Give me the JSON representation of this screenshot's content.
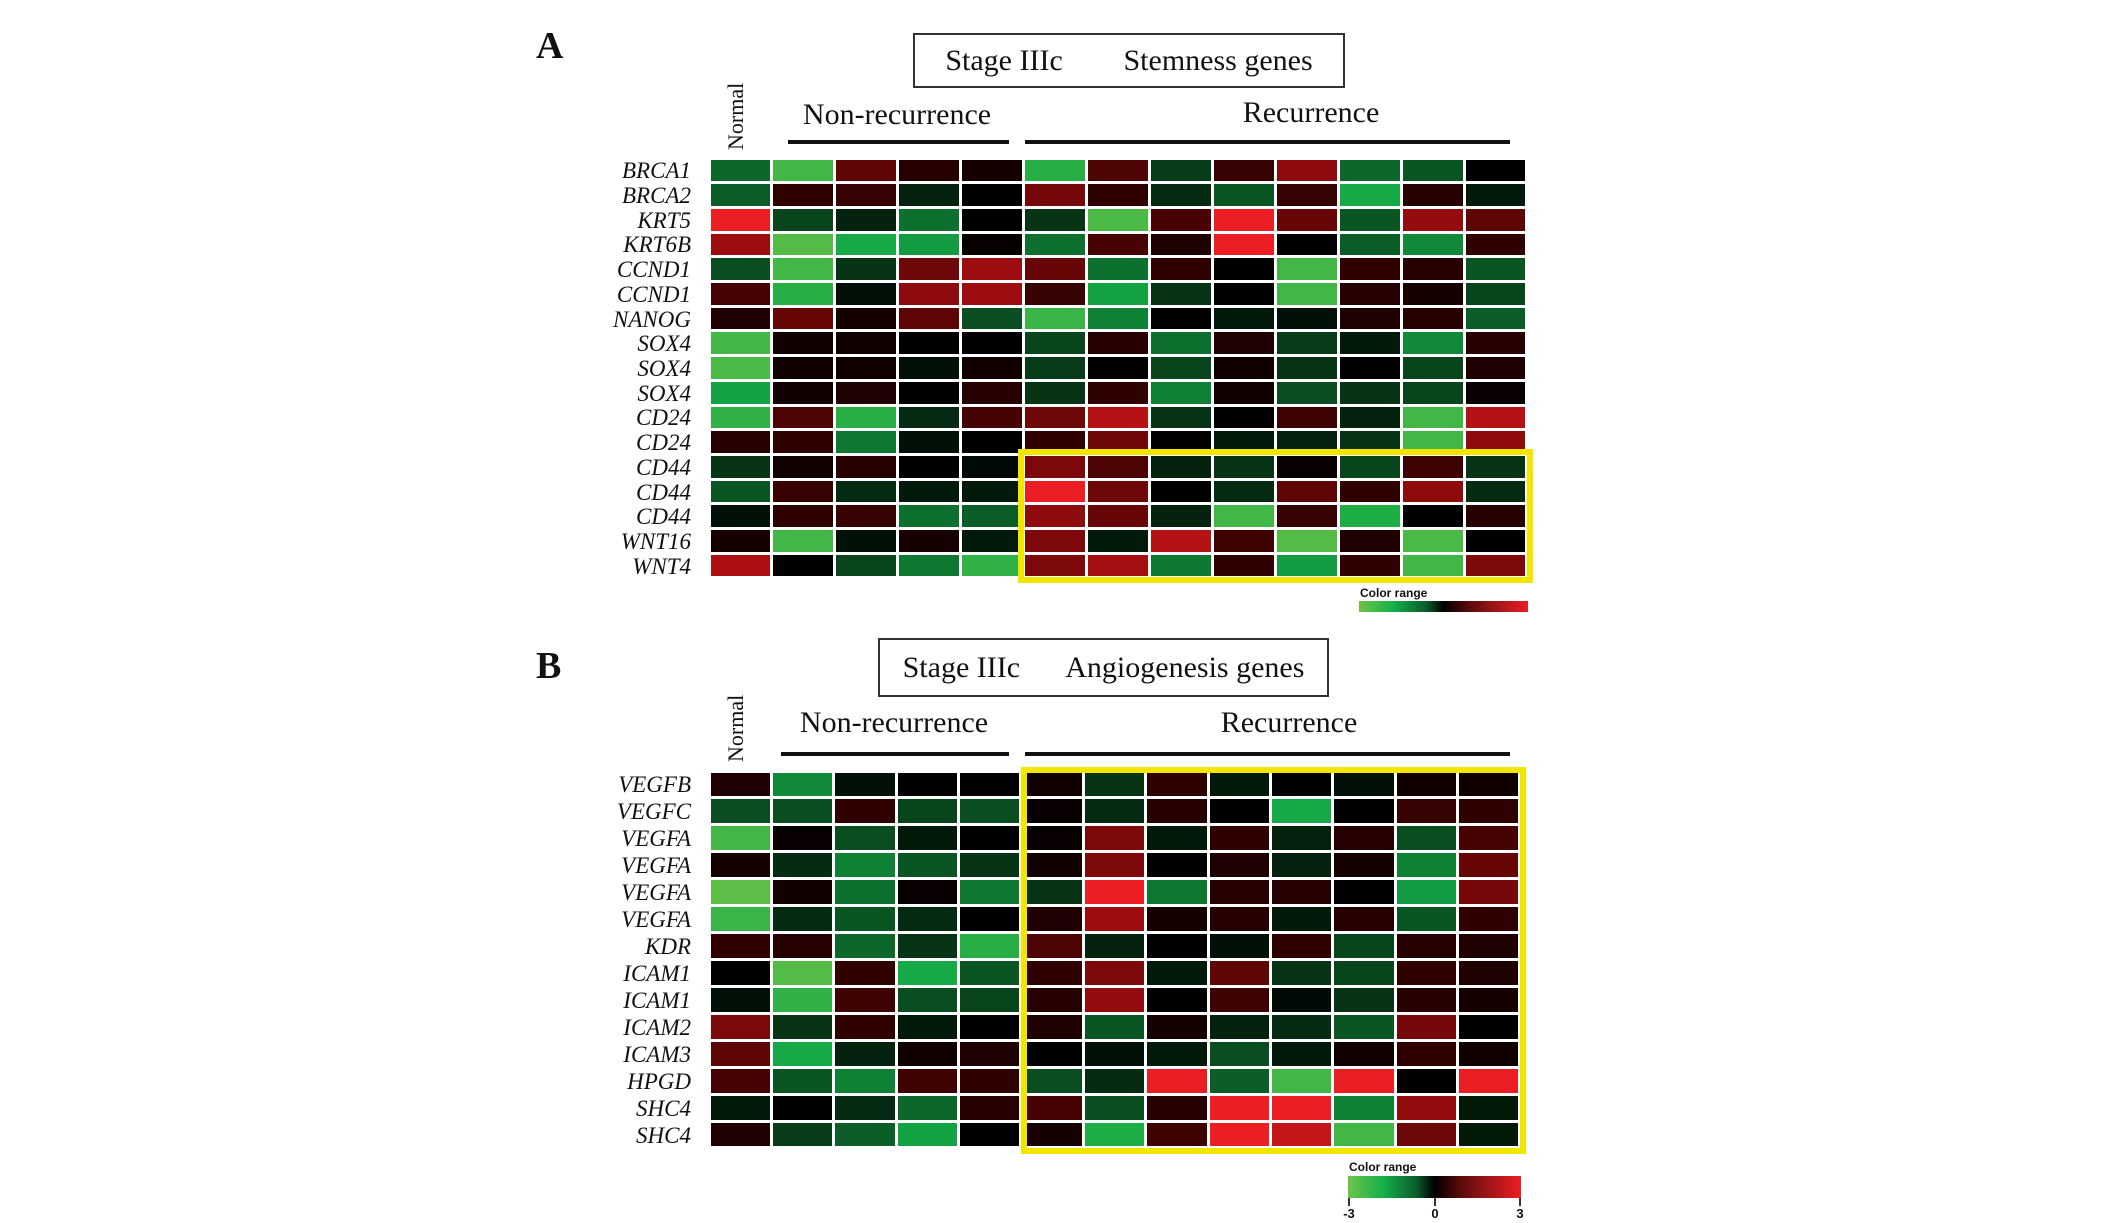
{
  "chart_data": [
    {
      "type": "heatmap",
      "panel_label": "A",
      "title_left": "Stage IIIc",
      "title_right": "Stemness genes",
      "column_groups": [
        {
          "label": "Normal",
          "columns": 1
        },
        {
          "label": "Non-recurrence",
          "columns": 4
        },
        {
          "label": "Recurrence",
          "columns": 8
        }
      ],
      "rows": [
        "BRCA1",
        "BRCA2",
        "KRT5",
        "KRT6B",
        "CCND1",
        "CCND1",
        "NANOG",
        "SOX4",
        "SOX4",
        "SOX4",
        "CD24",
        "CD24",
        "CD44",
        "CD44",
        "CD44",
        "WNT16",
        "WNT4"
      ],
      "values": [
        [
          -1.2,
          -2.5,
          1.2,
          0.5,
          0.3,
          -2.2,
          1,
          -0.7,
          0.7,
          1.8,
          -1.2,
          -1,
          0
        ],
        [
          -1.1,
          0.6,
          0.7,
          -0.4,
          0,
          1.5,
          0.6,
          -0.5,
          -1,
          0.7,
          -2,
          0.5,
          -0.3
        ],
        [
          3,
          -0.8,
          -0.4,
          -1.3,
          0,
          -0.6,
          -2.6,
          0.9,
          3,
          1.3,
          -1,
          1.9,
          1.2
        ],
        [
          2,
          -2.7,
          -2,
          -1.8,
          0.1,
          -1.3,
          0.9,
          0.4,
          3,
          0,
          -1.1,
          -1.6,
          0.6
        ],
        [
          -0.9,
          -2.5,
          -0.6,
          1.4,
          2,
          1.3,
          -1.3,
          0.6,
          0,
          -2.5,
          0.6,
          0.5,
          -1
        ],
        [
          0.9,
          -2.2,
          -0.2,
          1.8,
          2,
          0.7,
          -1.9,
          -0.6,
          0,
          -2.5,
          0.5,
          0.3,
          -0.8
        ],
        [
          0.4,
          1.3,
          0.3,
          1.2,
          -0.9,
          -2.4,
          -1.5,
          0,
          -0.3,
          -0.2,
          0.4,
          0.5,
          -1.1
        ],
        [
          -2.5,
          0.2,
          0.2,
          0,
          0,
          -0.8,
          0.5,
          -1.3,
          0.4,
          -0.7,
          -0.3,
          -1.6,
          0.5
        ],
        [
          -2.6,
          0.2,
          0.2,
          -0.2,
          0.2,
          -0.7,
          0,
          -0.8,
          0.2,
          -0.6,
          0,
          -0.8,
          0.4
        ],
        [
          -1.9,
          0.2,
          0.4,
          0,
          0.5,
          -0.6,
          0.6,
          -1.5,
          0.2,
          -0.9,
          -0.6,
          -0.8,
          0.1
        ],
        [
          -2.3,
          1,
          -2.2,
          -0.5,
          0.9,
          1.4,
          2.3,
          -0.6,
          0,
          0.8,
          -0.4,
          -2.5,
          2.3
        ],
        [
          0.5,
          0.6,
          -1.4,
          -0.2,
          0,
          0.6,
          1.4,
          0,
          -0.3,
          -0.4,
          -0.6,
          -2.5,
          1.8
        ],
        [
          -0.6,
          0.2,
          0.5,
          0,
          -0.1,
          1.6,
          1,
          -0.4,
          -0.6,
          0.1,
          -0.8,
          0.8,
          -0.6
        ],
        [
          -1,
          0.7,
          -0.5,
          -0.3,
          -0.3,
          3,
          1.4,
          0,
          -0.5,
          1.2,
          0.6,
          1.8,
          -0.5
        ],
        [
          -0.2,
          0.6,
          0.7,
          -1.3,
          -1.1,
          1.8,
          1.3,
          -0.4,
          -2.5,
          0.7,
          -2.1,
          0,
          0.5
        ],
        [
          0.3,
          -2.5,
          -0.2,
          0.3,
          -0.3,
          1.6,
          -0.3,
          2.3,
          0.8,
          -2.7,
          0.4,
          -2.6,
          0
        ],
        [
          2.2,
          0,
          -0.8,
          -1.4,
          -2.3,
          1.6,
          2.1,
          -1.4,
          0.6,
          -1.8,
          0.6,
          -2.5,
          1.6
        ]
      ],
      "highlight": {
        "rows": [
          "CD44",
          "WNT4"
        ],
        "columns": "Recurrence"
      },
      "colorbar": {
        "title": "Color range",
        "range": [
          -3,
          3
        ]
      }
    },
    {
      "type": "heatmap",
      "panel_label": "B",
      "title_left": "Stage IIIc",
      "title_right": "Angiogenesis genes",
      "column_groups": [
        {
          "label": "Normal",
          "columns": 1
        },
        {
          "label": "Non-recurrence",
          "columns": 4
        },
        {
          "label": "Recurrence",
          "columns": 8
        }
      ],
      "rows": [
        "VEGFB",
        "VEGFC",
        "VEGFA",
        "VEGFA",
        "VEGFA",
        "VEGFA",
        "KDR",
        "ICAM1",
        "ICAM1",
        "ICAM2",
        "ICAM3",
        "HPGD",
        "SHC4",
        "SHC4"
      ],
      "values": [
        [
          0.4,
          -1.6,
          -0.2,
          0,
          0,
          0.2,
          -0.6,
          0.6,
          -0.3,
          0,
          -0.2,
          0.2,
          0.2
        ],
        [
          -0.9,
          -0.9,
          0.6,
          -0.8,
          -0.9,
          0.1,
          -0.5,
          0.5,
          0,
          -2,
          0,
          0.7,
          0.6
        ],
        [
          -2.5,
          0.1,
          -0.9,
          -0.3,
          0,
          0.1,
          1.6,
          -0.3,
          0.6,
          -0.4,
          0.5,
          -0.9,
          0.9
        ],
        [
          0.3,
          -0.5,
          -1.5,
          -1,
          -0.6,
          0.2,
          1.6,
          0,
          0.4,
          -0.4,
          0.3,
          -1.5,
          1.3
        ],
        [
          -2.8,
          0.2,
          -1.3,
          0.1,
          -1.4,
          -0.6,
          3,
          -1.4,
          0.5,
          0.5,
          0,
          -1.8,
          1.5
        ],
        [
          -2.4,
          -0.5,
          -1,
          -0.5,
          0,
          0.4,
          2,
          0.3,
          0.5,
          -0.3,
          0.5,
          -1,
          0.6
        ],
        [
          0.6,
          0.5,
          -1.2,
          -0.6,
          -2.2,
          1,
          -0.4,
          0,
          -0.2,
          0.6,
          -0.8,
          0.5,
          0.4
        ],
        [
          0,
          -2.7,
          0.6,
          -2,
          -1,
          0.6,
          1.6,
          -0.3,
          1.2,
          -0.6,
          -0.8,
          0.6,
          0.4
        ],
        [
          -0.2,
          -2.3,
          0.8,
          -0.9,
          -0.8,
          0.5,
          1.9,
          0,
          0.8,
          -0.1,
          -0.6,
          0.5,
          0.3
        ],
        [
          1.6,
          -0.6,
          0.6,
          -0.3,
          0,
          0.4,
          -1,
          0.3,
          -0.4,
          -0.5,
          -1,
          1.5,
          0
        ],
        [
          1.2,
          -2,
          -0.4,
          0.2,
          0.4,
          0,
          -0.2,
          -0.3,
          -0.9,
          -0.3,
          0.2,
          0.6,
          0.2
        ],
        [
          0.9,
          -1,
          -1.5,
          0.8,
          0.6,
          -0.9,
          -0.5,
          3,
          -1.1,
          -2.5,
          3,
          0,
          3
        ],
        [
          -0.3,
          0,
          -0.5,
          -1.2,
          0.5,
          0.9,
          -0.9,
          0.5,
          3,
          3,
          -1.5,
          1.9,
          -0.3
        ],
        [
          0.4,
          -0.7,
          -1.1,
          -1.9,
          0,
          0.3,
          -2.1,
          0.8,
          3,
          2.5,
          -2.5,
          1.4,
          -0.3
        ]
      ],
      "highlight": {
        "rows": [
          "VEGFB",
          "SHC4"
        ],
        "columns": "Recurrence"
      },
      "colorbar": {
        "title": "Color range",
        "range": [
          -3,
          3
        ],
        "ticks": [
          "-3",
          "0",
          "3"
        ]
      }
    }
  ],
  "colors": {
    "low": "#6ec346",
    "mid": "#000000",
    "high": "#eb1e23",
    "highlight": "#f2e600"
  }
}
